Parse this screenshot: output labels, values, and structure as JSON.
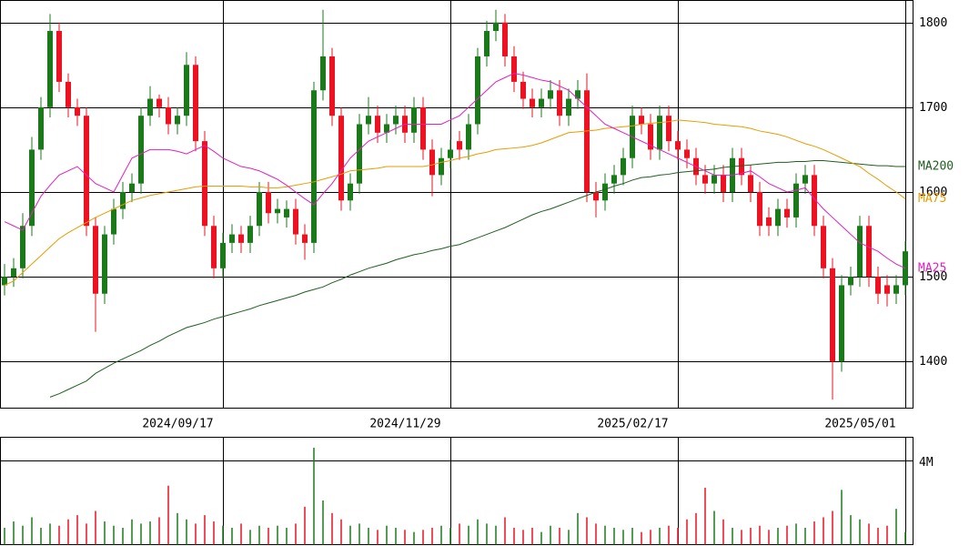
{
  "chart_data": {
    "type": "candlestick",
    "categories": [
      null,
      null,
      null,
      null,
      null,
      null,
      null,
      null,
      null,
      null,
      null,
      null,
      null,
      null,
      null,
      null,
      null,
      null,
      null,
      null,
      null,
      null,
      null,
      null,
      "2024/09/17",
      null,
      null,
      null,
      null,
      null,
      null,
      null,
      null,
      null,
      null,
      null,
      null,
      null,
      null,
      null,
      null,
      null,
      null,
      null,
      null,
      null,
      null,
      null,
      null,
      "2024/11/29",
      null,
      null,
      null,
      null,
      null,
      null,
      null,
      null,
      null,
      null,
      null,
      null,
      null,
      null,
      null,
      null,
      null,
      null,
      null,
      null,
      null,
      null,
      null,
      null,
      "2025/02/17",
      null,
      null,
      null,
      null,
      null,
      null,
      null,
      null,
      null,
      null,
      null,
      null,
      null,
      null,
      null,
      null,
      null,
      null,
      null,
      null,
      null,
      null,
      null,
      null,
      "2025/05/01"
    ],
    "open": [
      1490,
      1500,
      1510,
      1560,
      1650,
      1700,
      1790,
      1730,
      1700,
      1690,
      1560,
      1480,
      1550,
      1580,
      1600,
      1610,
      1690,
      1710,
      1700,
      1680,
      1690,
      1750,
      1660,
      1560,
      1510,
      1540,
      1550,
      1540,
      1560,
      1600,
      1575,
      1570,
      1580,
      1550,
      1540,
      1720,
      1760,
      1690,
      1590,
      1610,
      1680,
      1690,
      1670,
      1680,
      1690,
      1670,
      1700,
      1650,
      1620,
      1640,
      1660,
      1650,
      1680,
      1760,
      1790,
      1800,
      1760,
      1730,
      1710,
      1700,
      1710,
      1720,
      1690,
      1710,
      1720,
      1600,
      1590,
      1610,
      1620,
      1640,
      1690,
      1680,
      1650,
      1690,
      1660,
      1650,
      1640,
      1620,
      1610,
      1620,
      1600,
      1640,
      1620,
      1600,
      1570,
      1560,
      1580,
      1570,
      1610,
      1620,
      1560,
      1510,
      1400,
      1490,
      1500,
      1560,
      1500,
      1490,
      1480,
      1490
    ],
    "high": [
      1515,
      1522,
      1575,
      1665,
      1712,
      1810,
      1800,
      1740,
      1710,
      1700,
      1570,
      1560,
      1592,
      1612,
      1622,
      1700,
      1725,
      1715,
      1712,
      1700,
      1765,
      1760,
      1672,
      1572,
      1552,
      1562,
      1560,
      1572,
      1612,
      1612,
      1592,
      1590,
      1592,
      1562,
      1730,
      1815,
      1770,
      1700,
      1622,
      1692,
      1712,
      1702,
      1692,
      1702,
      1702,
      1712,
      1712,
      1662,
      1652,
      1662,
      1672,
      1692,
      1770,
      1802,
      1815,
      1810,
      1772,
      1742,
      1722,
      1722,
      1732,
      1732,
      1722,
      1732,
      1740,
      1612,
      1622,
      1632,
      1652,
      1702,
      1700,
      1692,
      1702,
      1702,
      1672,
      1662,
      1652,
      1632,
      1632,
      1632,
      1652,
      1652,
      1632,
      1612,
      1582,
      1592,
      1592,
      1622,
      1632,
      1632,
      1572,
      1522,
      1502,
      1512,
      1572,
      1572,
      1512,
      1502,
      1502,
      1542
    ],
    "low": [
      1478,
      1488,
      1498,
      1548,
      1638,
      1688,
      1718,
      1688,
      1678,
      1548,
      1435,
      1468,
      1538,
      1568,
      1588,
      1598,
      1678,
      1688,
      1668,
      1668,
      1678,
      1648,
      1548,
      1498,
      1498,
      1528,
      1528,
      1528,
      1548,
      1563,
      1563,
      1558,
      1538,
      1520,
      1528,
      1708,
      1678,
      1578,
      1578,
      1598,
      1668,
      1658,
      1658,
      1668,
      1658,
      1658,
      1638,
      1595,
      1608,
      1628,
      1638,
      1638,
      1668,
      1748,
      1778,
      1748,
      1718,
      1698,
      1688,
      1688,
      1698,
      1678,
      1678,
      1698,
      1588,
      1570,
      1578,
      1598,
      1608,
      1628,
      1668,
      1638,
      1638,
      1648,
      1638,
      1628,
      1608,
      1598,
      1598,
      1588,
      1588,
      1608,
      1588,
      1548,
      1548,
      1548,
      1558,
      1558,
      1598,
      1548,
      1498,
      1355,
      1388,
      1478,
      1488,
      1488,
      1468,
      1465,
      1468,
      1478
    ],
    "close": [
      1500,
      1510,
      1560,
      1650,
      1700,
      1790,
      1730,
      1700,
      1690,
      1560,
      1480,
      1550,
      1580,
      1600,
      1610,
      1690,
      1710,
      1700,
      1680,
      1690,
      1750,
      1660,
      1560,
      1510,
      1540,
      1550,
      1540,
      1560,
      1600,
      1575,
      1580,
      1580,
      1550,
      1540,
      1720,
      1760,
      1690,
      1590,
      1610,
      1680,
      1690,
      1670,
      1680,
      1690,
      1670,
      1700,
      1650,
      1620,
      1640,
      1650,
      1650,
      1680,
      1760,
      1790,
      1800,
      1760,
      1730,
      1710,
      1700,
      1710,
      1720,
      1690,
      1710,
      1720,
      1600,
      1590,
      1610,
      1620,
      1640,
      1690,
      1680,
      1650,
      1690,
      1660,
      1650,
      1640,
      1620,
      1610,
      1620,
      1600,
      1640,
      1620,
      1600,
      1560,
      1560,
      1580,
      1570,
      1610,
      1620,
      1560,
      1510,
      1400,
      1490,
      1500,
      1560,
      1500,
      1480,
      1480,
      1490,
      1530
    ],
    "up_color": "#1a7a1a",
    "down_color": "#ee1122",
    "series": [
      {
        "name": "MA200",
        "color": "#1f5f1f",
        "values": [
          null,
          null,
          null,
          null,
          null,
          1358,
          1362,
          1367,
          1372,
          1377,
          1386,
          1392,
          1398,
          1403,
          1408,
          1413,
          1419,
          1424,
          1430,
          1435,
          1440,
          1443,
          1446,
          1450,
          1453,
          1456,
          1459,
          1462,
          1466,
          1469,
          1472,
          1475,
          1478,
          1482,
          1485,
          1488,
          1493,
          1497,
          1502,
          1506,
          1510,
          1513,
          1516,
          1520,
          1523,
          1526,
          1528,
          1531,
          1533,
          1536,
          1538,
          1542,
          1546,
          1550,
          1554,
          1558,
          1563,
          1568,
          1573,
          1577,
          1580,
          1584,
          1588,
          1592,
          1596,
          1600,
          1603,
          1607,
          1610,
          1614,
          1617,
          1618,
          1620,
          1621,
          1623,
          1624,
          1625,
          1626,
          1627,
          1629,
          1630,
          1631,
          1632,
          1633,
          1634,
          1635,
          1635,
          1636,
          1636,
          1637,
          1637,
          1636,
          1635,
          1634,
          1633,
          1632,
          1631,
          1631,
          1630,
          1630
        ]
      },
      {
        "name": "MA75",
        "color": "#e89c00",
        "values": [
          1490,
          1495,
          1505,
          1515,
          1525,
          1535,
          1545,
          1552,
          1558,
          1564,
          1570,
          1575,
          1580,
          1585,
          1590,
          1593,
          1596,
          1598,
          1600,
          1602,
          1604,
          1606,
          1607,
          1607,
          1607,
          1607,
          1607,
          1606,
          1606,
          1605,
          1605,
          1606,
          1608,
          1610,
          1612,
          1615,
          1618,
          1621,
          1625,
          1626,
          1627,
          1628,
          1630,
          1630,
          1630,
          1630,
          1630,
          1632,
          1635,
          1637,
          1640,
          1642,
          1645,
          1647,
          1650,
          1651,
          1652,
          1653,
          1655,
          1658,
          1662,
          1666,
          1670,
          1671,
          1672,
          1673,
          1675,
          1676,
          1677,
          1678,
          1680,
          1681,
          1682,
          1683,
          1685,
          1684,
          1683,
          1682,
          1680,
          1679,
          1678,
          1677,
          1675,
          1672,
          1670,
          1668,
          1665,
          1661,
          1657,
          1654,
          1650,
          1645,
          1640,
          1635,
          1630,
          1622,
          1615,
          1607,
          1600,
          1592
        ]
      },
      {
        "name": "MA25",
        "color": "#e020c0",
        "values": [
          1565,
          1560,
          1555,
          1575,
          1595,
          1608,
          1620,
          1625,
          1630,
          1620,
          1610,
          1605,
          1600,
          1620,
          1640,
          1645,
          1650,
          1650,
          1650,
          1648,
          1645,
          1650,
          1655,
          1648,
          1640,
          1635,
          1630,
          1628,
          1625,
          1620,
          1615,
          1608,
          1600,
          1592,
          1585,
          1598,
          1610,
          1625,
          1640,
          1650,
          1660,
          1665,
          1670,
          1675,
          1680,
          1680,
          1680,
          1680,
          1680,
          1685,
          1690,
          1700,
          1710,
          1720,
          1730,
          1735,
          1740,
          1738,
          1735,
          1732,
          1730,
          1725,
          1720,
          1710,
          1700,
          1690,
          1680,
          1675,
          1670,
          1665,
          1660,
          1655,
          1650,
          1645,
          1640,
          1635,
          1630,
          1625,
          1620,
          1620,
          1620,
          1622,
          1625,
          1618,
          1610,
          1605,
          1600,
          1602,
          1605,
          1592,
          1580,
          1570,
          1560,
          1550,
          1540,
          1535,
          1530,
          1522,
          1515,
          1510
        ]
      }
    ],
    "ylim": [
      1345,
      1826
    ],
    "yticks": [
      1400,
      1500,
      1600,
      1700,
      1800
    ],
    "grid": true,
    "volume": [
      0.8,
      1.1,
      0.9,
      1.3,
      0.8,
      1.0,
      0.9,
      1.2,
      1.4,
      1.0,
      1.6,
      1.1,
      0.9,
      0.8,
      1.2,
      1.0,
      1.1,
      1.3,
      2.8,
      1.5,
      1.2,
      1.0,
      1.4,
      1.1,
      0.9,
      0.8,
      1.0,
      0.7,
      0.9,
      0.8,
      0.9,
      0.8,
      1.0,
      1.8,
      4.6,
      2.1,
      1.5,
      1.2,
      0.9,
      1.0,
      0.8,
      0.7,
      0.9,
      0.8,
      0.7,
      0.6,
      0.7,
      0.8,
      0.9,
      0.8,
      1.0,
      0.9,
      1.2,
      1.0,
      0.9,
      1.3,
      0.8,
      0.7,
      0.8,
      0.6,
      0.9,
      0.8,
      0.7,
      1.5,
      1.3,
      1.0,
      0.9,
      0.8,
      0.7,
      0.8,
      0.6,
      0.7,
      0.8,
      0.9,
      0.8,
      1.2,
      1.5,
      2.7,
      1.6,
      1.2,
      0.8,
      0.7,
      0.8,
      0.9,
      0.7,
      0.8,
      0.9,
      1.0,
      0.8,
      1.1,
      1.3,
      1.6,
      2.6,
      1.4,
      1.2,
      1.0,
      0.8,
      0.9,
      1.7,
      0.6
    ],
    "volume_ylim": [
      0,
      5.1
    ],
    "volume_yticks": [
      {
        "value": 4,
        "label": "4M"
      }
    ]
  }
}
